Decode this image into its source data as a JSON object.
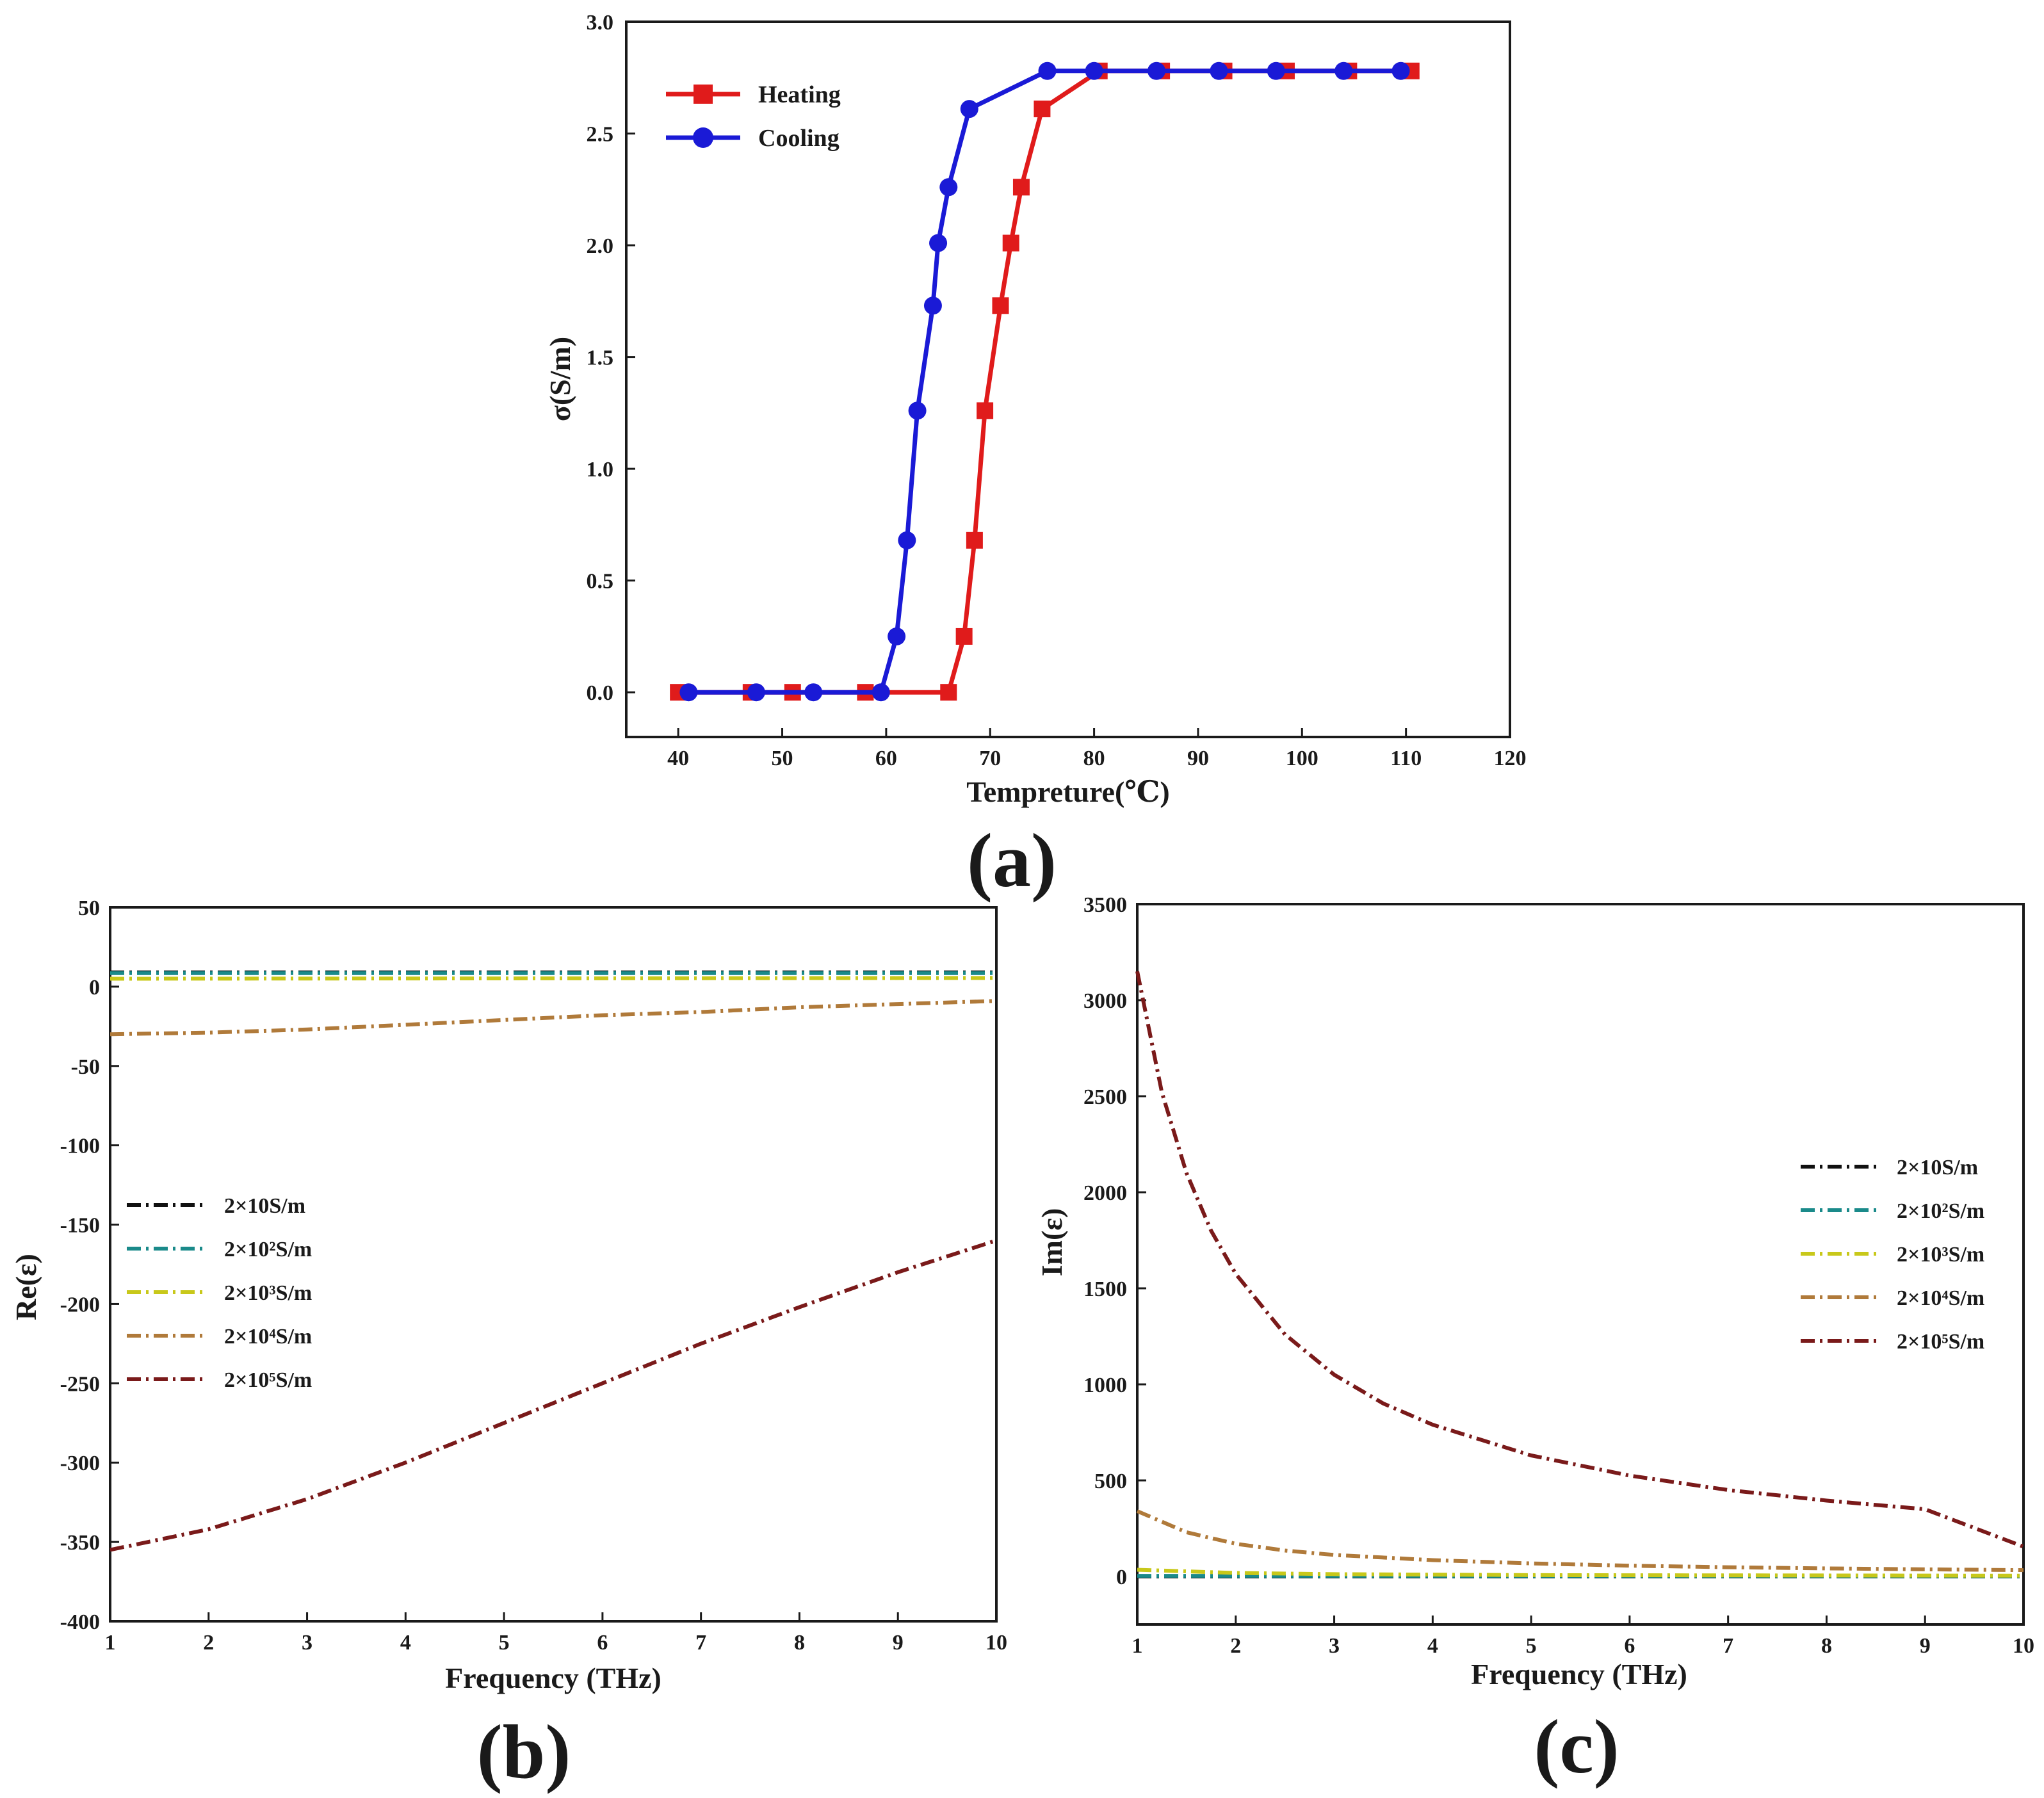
{
  "chart_data": [
    {
      "id": "a",
      "type": "line",
      "panel_label": "(a)",
      "xlabel": "Tempreture(℃)",
      "ylabel": "σ(S/m)",
      "xlim": [
        35,
        120
      ],
      "ylim": [
        -0.2,
        3.0
      ],
      "xticks": [
        40,
        50,
        60,
        70,
        80,
        90,
        100,
        110,
        120
      ],
      "yticks": [
        0.0,
        0.5,
        1.0,
        1.5,
        2.0,
        2.5,
        3.0
      ],
      "ytick_labels": [
        "0.0",
        "0.5",
        "1.0",
        "1.5",
        "2.0",
        "2.5",
        "3.0"
      ],
      "legend_position": "top-left",
      "series": [
        {
          "name": "Heating",
          "color": "#e01b1b",
          "marker": "square",
          "x": [
            40,
            47,
            51,
            58,
            66,
            67.5,
            68.5,
            69.5,
            71,
            72,
            73,
            75,
            80.5,
            86.5,
            92.5,
            98.5,
            104.5,
            110.5
          ],
          "y": [
            0,
            0,
            0,
            0,
            0,
            0.25,
            0.68,
            1.26,
            1.73,
            2.01,
            2.26,
            2.61,
            2.78,
            2.78,
            2.78,
            2.78,
            2.78,
            2.78
          ]
        },
        {
          "name": "Cooling",
          "color": "#1a1ad6",
          "marker": "circle",
          "x": [
            41,
            47.5,
            53,
            59.5,
            61,
            62,
            63,
            64.5,
            65,
            66,
            68,
            75.5,
            80,
            86,
            92,
            97.5,
            104,
            109.5
          ],
          "y": [
            0,
            0,
            0,
            0,
            0.25,
            0.68,
            1.26,
            1.73,
            2.01,
            2.26,
            2.61,
            2.78,
            2.78,
            2.78,
            2.78,
            2.78,
            2.78,
            2.78
          ]
        }
      ]
    },
    {
      "id": "b",
      "type": "line",
      "panel_label": "(b)",
      "xlabel": "Frequency (THz)",
      "ylabel": "Re(ε)",
      "xlim": [
        1,
        10
      ],
      "ylim": [
        -400,
        50
      ],
      "xticks": [
        1,
        2,
        3,
        4,
        5,
        6,
        7,
        8,
        9,
        10
      ],
      "yticks": [
        -400,
        -350,
        -300,
        -250,
        -200,
        -150,
        -100,
        -50,
        0,
        50
      ],
      "legend_position": "center-left",
      "series": [
        {
          "name": "2×10S/m",
          "sup": "",
          "color": "#111111",
          "x": [
            1,
            10
          ],
          "y": [
            9,
            9
          ]
        },
        {
          "name": "2×10²S/m",
          "sup": "2",
          "color": "#1a8a8a",
          "x": [
            1,
            10
          ],
          "y": [
            8.5,
            8.5
          ]
        },
        {
          "name": "2×10³S/m",
          "sup": "3",
          "color": "#c8c81a",
          "x": [
            1,
            10
          ],
          "y": [
            5,
            5.5
          ]
        },
        {
          "name": "2×10⁴S/m",
          "sup": "4",
          "color": "#b07a3a",
          "x": [
            1,
            2,
            3,
            4,
            5,
            6,
            7,
            8,
            9,
            10
          ],
          "y": [
            -30,
            -29,
            -27,
            -24,
            -21,
            -18,
            -16,
            -13,
            -11,
            -9
          ]
        },
        {
          "name": "2×10⁵S/m",
          "sup": "5",
          "color": "#7a1a1a",
          "x": [
            1,
            2,
            3,
            4,
            5,
            6,
            7,
            8,
            9,
            10
          ],
          "y": [
            -355,
            -342,
            -323,
            -300,
            -275,
            -250,
            -225,
            -202,
            -180,
            -160
          ]
        }
      ]
    },
    {
      "id": "c",
      "type": "line",
      "panel_label": "(c)",
      "xlabel": "Frequency (THz)",
      "ylabel": "Im(ε)",
      "xlim": [
        1,
        10
      ],
      "ylim": [
        -250,
        3500
      ],
      "xticks": [
        1,
        2,
        3,
        4,
        5,
        6,
        7,
        8,
        9,
        10
      ],
      "yticks": [
        0,
        500,
        1000,
        1500,
        2000,
        2500,
        3000,
        3500
      ],
      "legend_position": "upper-right",
      "series": [
        {
          "name": "2×10S/m",
          "sup": "",
          "color": "#111111",
          "x": [
            1,
            10
          ],
          "y": [
            0,
            0
          ]
        },
        {
          "name": "2×10²S/m",
          "sup": "2",
          "color": "#1a8a8a",
          "x": [
            1,
            10
          ],
          "y": [
            3,
            1
          ]
        },
        {
          "name": "2×10³S/m",
          "sup": "3",
          "color": "#c8c81a",
          "x": [
            1,
            2,
            3,
            5,
            10
          ],
          "y": [
            35,
            18,
            12,
            7,
            4
          ]
        },
        {
          "name": "2×10⁴S/m",
          "sup": "4",
          "color": "#b07a3a",
          "x": [
            1,
            1.5,
            2,
            2.5,
            3,
            4,
            5,
            6,
            7,
            8,
            9,
            10
          ],
          "y": [
            340,
            230,
            170,
            135,
            112,
            85,
            68,
            56,
            48,
            42,
            37,
            33
          ]
        },
        {
          "name": "2×10⁵S/m",
          "sup": "5",
          "color": "#7a1a1a",
          "x": [
            1,
            1.25,
            1.5,
            1.75,
            2,
            2.5,
            3,
            3.5,
            4,
            5,
            6,
            7,
            8,
            9,
            10
          ],
          "y": [
            3150,
            2520,
            2100,
            1800,
            1575,
            1260,
            1050,
            900,
            790,
            630,
            525,
            450,
            395,
            350,
            155
          ]
        }
      ]
    }
  ]
}
